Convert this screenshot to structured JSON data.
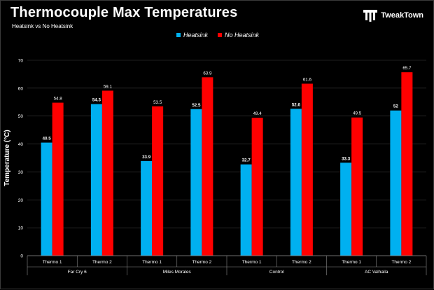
{
  "header": {
    "title": "Thermocouple Max Temperatures",
    "subtitle": "Heatsink vs No Heatsink",
    "logo_text": "TweakTown"
  },
  "colors": {
    "heatsink": "#00b0f0",
    "no_heatsink": "#ff0000",
    "background": "#000000",
    "text": "#ffffff",
    "grid": "#3c3c3c"
  },
  "chart_data": {
    "type": "bar",
    "title": "Thermocouple Max Temperatures",
    "subtitle": "Heatsink vs No Heatsink",
    "xlabel": "",
    "ylabel": "Temperature (°C)",
    "ylim": [
      0,
      70
    ],
    "yticks": [
      0,
      10,
      20,
      30,
      40,
      50,
      60,
      70
    ],
    "grid": true,
    "legend_position": "top-center",
    "groups": [
      {
        "name": "Far Cry 6",
        "categories": [
          "Thermo 1",
          "Thermo 2"
        ]
      },
      {
        "name": "Miles Morales",
        "categories": [
          "Thermo 1",
          "Thermo 2"
        ]
      },
      {
        "name": "Control",
        "categories": [
          "Thermo 1",
          "Thermo 2"
        ]
      },
      {
        "name": "AC Valhalla",
        "categories": [
          "Thermo 1",
          "Thermo 2"
        ]
      }
    ],
    "series": [
      {
        "name": "Heatsink",
        "values": [
          40.5,
          54.3,
          33.9,
          52.5,
          32.7,
          52.6,
          33.3,
          52
        ]
      },
      {
        "name": "No Heatsink",
        "values": [
          54.8,
          59.1,
          53.5,
          63.9,
          49.4,
          61.6,
          49.5,
          65.7
        ]
      }
    ]
  }
}
